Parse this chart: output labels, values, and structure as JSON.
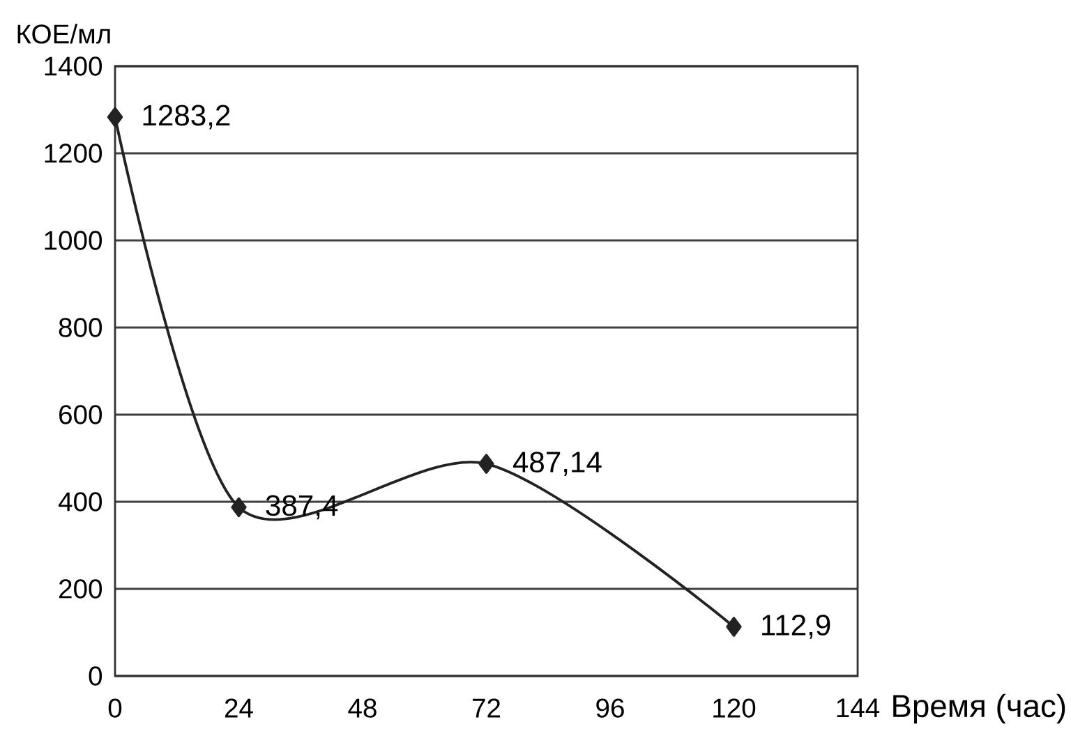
{
  "chart_data": {
    "type": "line",
    "xlabel": "Время (час)",
    "ylabel": "КОЕ/мл",
    "x": [
      0,
      24,
      72,
      120
    ],
    "series": [
      {
        "color": "#222222",
        "values": [
          1283.2,
          387.4,
          487.14,
          112.9
        ],
        "value_labels": [
          "1283,2",
          "387,4",
          "487,14",
          "112,9"
        ]
      }
    ],
    "xlim": [
      0,
      144
    ],
    "xticks": [
      0,
      24,
      48,
      72,
      96,
      120,
      144
    ],
    "ylim": [
      0,
      1400
    ],
    "yticks": [
      0,
      200,
      400,
      600,
      800,
      1000,
      1200,
      1400
    ],
    "grid": "y",
    "marker": "diamond",
    "line_style": "solid"
  }
}
